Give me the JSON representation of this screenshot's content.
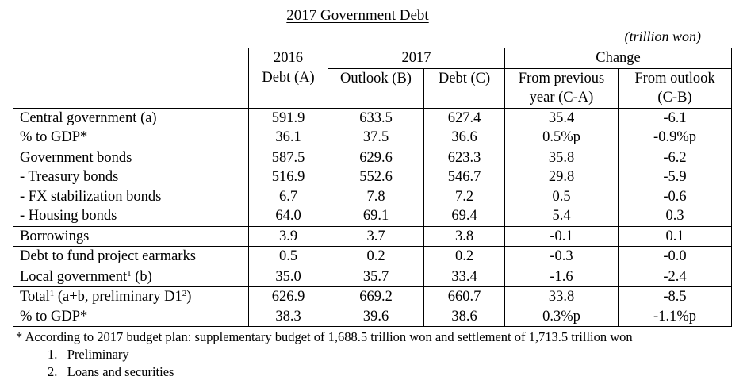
{
  "title": "2017 Government Debt",
  "unit": "(trillion won)",
  "header": {
    "col2016_line1": "2016",
    "col2016_line2": "Debt (A)",
    "col2017": "2017",
    "outlook": "Outlook (B)",
    "debt_c": "Debt (C)",
    "change": "Change",
    "from_prev_line1": "From previous",
    "from_prev_line2": "year (C-A)",
    "from_outlook_line1": "From outlook",
    "from_outlook_line2": "(C-B)"
  },
  "rows": [
    {
      "label": "Central government (a)",
      "a": "591.9",
      "b": "633.5",
      "c": "627.4",
      "ca": "35.4",
      "cb": "-6.1"
    },
    {
      "label": "% to GDP*",
      "a": "36.1",
      "b": "37.5",
      "c": "36.6",
      "ca": "0.5%p",
      "cb": "-0.9%p"
    },
    {
      "label": "Government bonds",
      "a": "587.5",
      "b": "629.6",
      "c": "623.3",
      "ca": "35.8",
      "cb": "-6.2"
    },
    {
      "label": "- Treasury bonds",
      "a": "516.9",
      "b": "552.6",
      "c": "546.7",
      "ca": "29.8",
      "cb": "-5.9"
    },
    {
      "label": "- FX stabilization bonds",
      "a": "6.7",
      "b": "7.8",
      "c": "7.2",
      "ca": "0.5",
      "cb": "-0.6"
    },
    {
      "label": "- Housing bonds",
      "a": "64.0",
      "b": "69.1",
      "c": "69.4",
      "ca": "5.4",
      "cb": "0.3"
    },
    {
      "label": "Borrowings",
      "a": "3.9",
      "b": "3.7",
      "c": "3.8",
      "ca": "-0.1",
      "cb": "0.1"
    },
    {
      "label": "Debt to fund project earmarks",
      "a": "0.5",
      "b": "0.2",
      "c": "0.2",
      "ca": "-0.3",
      "cb": "-0.0"
    },
    {
      "label": "Local government",
      "label_fn": "1",
      "label_suffix": " (b)",
      "a": "35.0",
      "b": "35.7",
      "c": "33.4",
      "ca": "-1.6",
      "cb": "-2.4"
    },
    {
      "label": "Total",
      "label_fn": "1",
      "label_suffix": " (a+b, preliminary D1",
      "label_fn2": "2",
      "label_end": ")",
      "a": "626.9",
      "b": "669.2",
      "c": "660.7",
      "ca": "33.8",
      "cb": "-8.5"
    },
    {
      "label": "% to GDP*",
      "a": "38.3",
      "b": "39.6",
      "c": "38.6",
      "ca": "0.3%p",
      "cb": "-1.1%p"
    }
  ],
  "notes": {
    "star": "* According to 2017 budget plan: supplementary budget of 1,688.5 trillion won and settlement of 1,713.5 trillion won",
    "n1": "1.   Preliminary",
    "n2": "2.   Loans and securities"
  }
}
